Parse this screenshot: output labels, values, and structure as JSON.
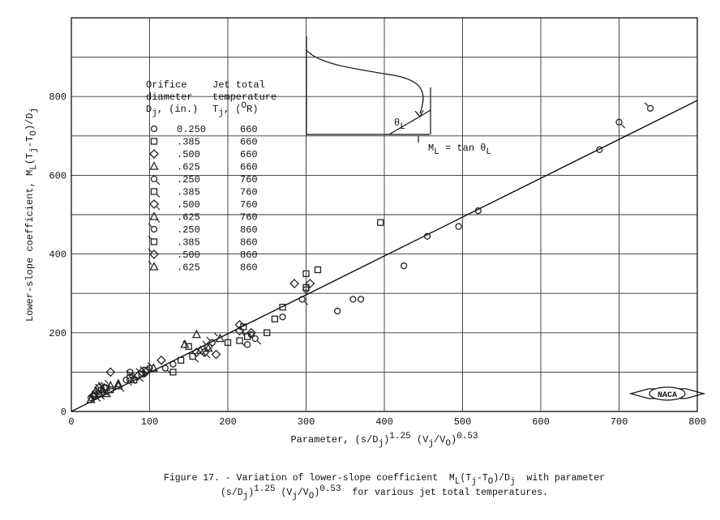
{
  "chart_data": {
    "type": "scatter",
    "xlim": [
      0,
      800
    ],
    "ylim": [
      0,
      1000
    ],
    "xticks": [
      0,
      100,
      200,
      300,
      400,
      500,
      600,
      700,
      800
    ],
    "yticks": [
      0,
      200,
      400,
      600,
      800
    ],
    "ygrid": [
      100,
      200,
      300,
      400,
      500,
      600,
      700,
      800,
      900,
      1000
    ],
    "grid": true,
    "x_label": [
      "Parameter, (s/D",
      {
        "sub": "j"
      },
      ")",
      {
        "sup": "1.25"
      },
      " (V",
      {
        "sub": "j"
      },
      "/V",
      {
        "sub": "O"
      },
      ")",
      {
        "sup": "0.53"
      }
    ],
    "y_label": [
      "Lower-slope coefficient, M",
      {
        "sub": "L"
      },
      "(T",
      {
        "sub": "j"
      },
      "-T",
      {
        "sub": "O"
      },
      ")/D",
      {
        "sub": "j"
      }
    ],
    "legend_headers": {
      "diameter": [
        [
          "Orifice"
        ],
        [
          "diameter"
        ],
        [
          "D",
          {
            "sub": "j"
          },
          ", (in.)"
        ]
      ],
      "temperature": [
        [
          "Jet total"
        ],
        [
          "temperature"
        ],
        [
          "T",
          {
            "sub": "j"
          },
          ", (",
          {
            "sup": "O"
          },
          "R)"
        ]
      ]
    },
    "fit_line": {
      "x": [
        0,
        800
      ],
      "y": [
        0,
        790
      ]
    },
    "inset": {
      "angle": [
        "θ",
        {
          "sub": "L"
        }
      ],
      "formula": [
        "M",
        {
          "sub": "L"
        },
        " = tan θ",
        {
          "sub": "L"
        }
      ]
    },
    "logo_text": "NACA",
    "caption": [
      [
        "Figure 17. - Variation of lower-slope coefficient  M",
        {
          "sub": "L"
        },
        "(T",
        {
          "sub": "j"
        },
        "-T",
        {
          "sub": "O"
        },
        ")/D",
        {
          "sub": "j"
        },
        "  with parameter"
      ],
      [
        "(s/D",
        {
          "sub": "j"
        },
        ")",
        {
          "sup": "1.25"
        },
        " (V",
        {
          "sub": "j"
        },
        "/V",
        {
          "sub": "O"
        },
        ")",
        {
          "sup": "0.53"
        },
        "  for various jet total temperatures."
      ]
    ],
    "series": [
      {
        "diameter": "0.250",
        "temperature": 660,
        "marker": "circle",
        "tail": "none",
        "color": "#222",
        "x": [
          25,
          30,
          40,
          75,
          100,
          130,
          225,
          230,
          270,
          300,
          340,
          360,
          370,
          425,
          455,
          495,
          520,
          675
        ],
        "y": [
          35,
          45,
          50,
          100,
          110,
          120,
          170,
          195,
          240,
          310,
          255,
          285,
          285,
          370,
          445,
          470,
          510,
          665
        ]
      },
      {
        "diameter": ".385",
        "temperature": 660,
        "marker": "square",
        "tail": "none",
        "color": "#222",
        "x": [
          30,
          50,
          80,
          95,
          130,
          140,
          200,
          220,
          250,
          260,
          270,
          300,
          300,
          315,
          395
        ],
        "y": [
          40,
          55,
          80,
          105,
          100,
          130,
          175,
          215,
          200,
          235,
          265,
          350,
          315,
          360,
          480
        ]
      },
      {
        "diameter": ".500",
        "temperature": 660,
        "marker": "diamond",
        "tail": "none",
        "color": "#222",
        "x": [
          28,
          35,
          50,
          90,
          115,
          160,
          185,
          215,
          230,
          285,
          305
        ],
        "y": [
          40,
          60,
          100,
          100,
          130,
          150,
          145,
          220,
          200,
          325,
          325
        ]
      },
      {
        "diameter": ".625",
        "temperature": 660,
        "marker": "triangle",
        "tail": "none",
        "color": "#222",
        "x": [
          25,
          45,
          60,
          145,
          160,
          175
        ],
        "y": [
          30,
          45,
          70,
          170,
          195,
          160
        ]
      },
      {
        "diameter": ".250",
        "temperature": 760,
        "marker": "circle",
        "tail": "down",
        "color": "#222",
        "x": [
          30,
          70,
          120,
          235,
          295,
          700
        ],
        "y": [
          40,
          80,
          110,
          185,
          285,
          735
        ]
      },
      {
        "diameter": ".385",
        "temperature": 760,
        "marker": "square",
        "tail": "down",
        "color": "#222",
        "x": [
          35,
          75,
          155,
          215
        ],
        "y": [
          45,
          85,
          140,
          180
        ]
      },
      {
        "diameter": ".500",
        "temperature": 760,
        "marker": "diamond",
        "tail": "down",
        "color": "#222",
        "x": [
          32,
          85,
          170,
          215
        ],
        "y": [
          50,
          90,
          150,
          205
        ]
      },
      {
        "diameter": ".625",
        "temperature": 760,
        "marker": "triangle",
        "tail": "down",
        "color": "#222",
        "x": [
          40,
          60,
          165
        ],
        "y": [
          55,
          65,
          155
        ]
      },
      {
        "diameter": ".250",
        "temperature": 860,
        "marker": "circle",
        "tail": "up",
        "color": "#222",
        "x": [
          38,
          78,
          180,
          740
        ],
        "y": [
          55,
          90,
          175,
          770
        ]
      },
      {
        "diameter": ".385",
        "temperature": 860,
        "marker": "square",
        "tail": "up",
        "color": "#222",
        "x": [
          45,
          90,
          150,
          225
        ],
        "y": [
          60,
          95,
          165,
          190
        ]
      },
      {
        "diameter": ".500",
        "temperature": 860,
        "marker": "diamond",
        "tail": "up",
        "color": "#222",
        "x": [
          42,
          95,
          175
        ],
        "y": [
          60,
          100,
          165
        ]
      },
      {
        "diameter": ".625",
        "temperature": 860,
        "marker": "triangle",
        "tail": "up",
        "color": "#222",
        "x": [
          50,
          105,
          190
        ],
        "y": [
          65,
          110,
          185
        ]
      }
    ]
  }
}
